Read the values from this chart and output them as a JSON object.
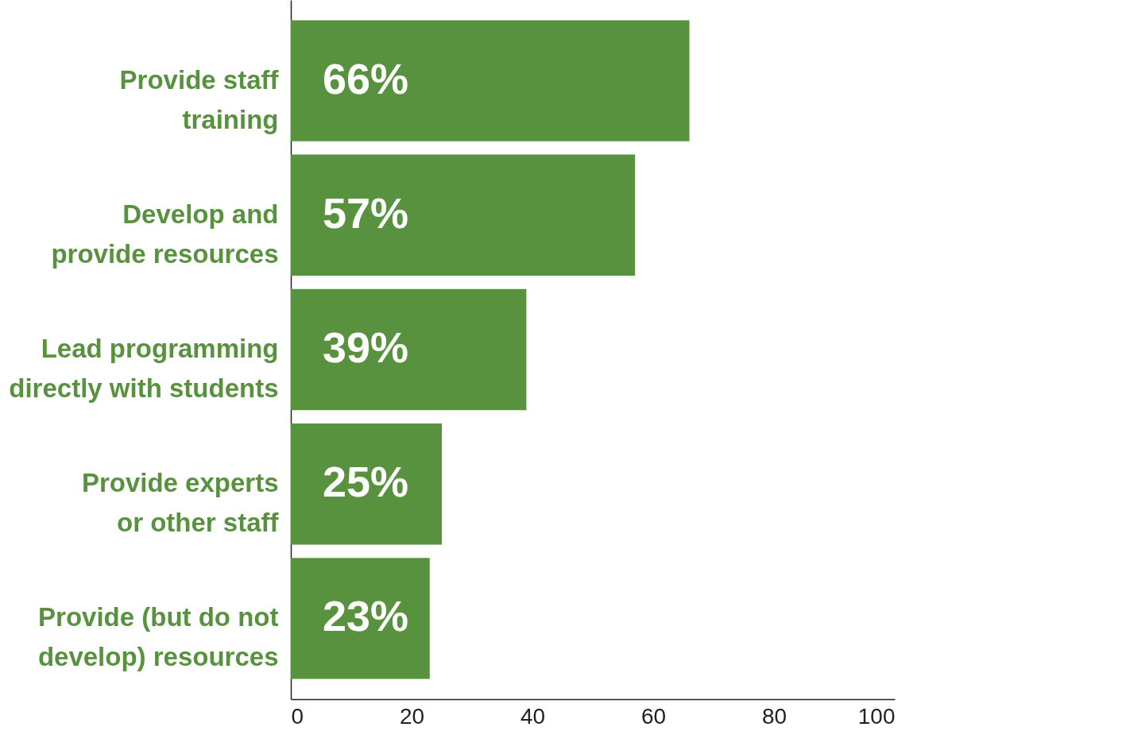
{
  "chart_data": {
    "type": "bar",
    "orientation": "horizontal",
    "categories": [
      "Provide staff training",
      "Develop and provide resources",
      "Lead programming directly with students",
      "Provide experts or other staff",
      "Provide (but do not develop) resources"
    ],
    "values": [
      66,
      57,
      39,
      25,
      23
    ],
    "value_labels": [
      "66%",
      "57%",
      "39%",
      "25%",
      "23%"
    ],
    "color": "#58923f",
    "xlim": [
      0,
      100
    ],
    "xticks": [
      0,
      20,
      40,
      60,
      80,
      100
    ],
    "grid": false
  }
}
